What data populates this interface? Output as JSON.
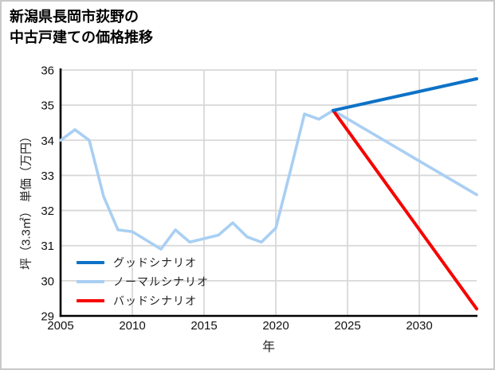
{
  "page": {
    "title_lines": "新潟県長岡市荻野の\n中古戸建ての価格推移"
  },
  "colors": {
    "good_scenario": "#0d72c7",
    "normal_scenario": "#a9cff3",
    "bad_scenario": "#f60000",
    "grid": "#d8d8d8",
    "axis_spine": "#000000",
    "border": "#c9c9c9",
    "background": "#ffffff"
  },
  "chart_data": {
    "type": "line",
    "title": "新潟県長岡市荻野の中古戸建ての価格推移",
    "xlabel": "年",
    "ylabel": "坪（3.3㎡） 単価（万円）",
    "xlim": [
      2005,
      2034
    ],
    "ylim": [
      29,
      36
    ],
    "x_ticks": [
      2005,
      2010,
      2015,
      2020,
      2025,
      2030
    ],
    "y_ticks": [
      29,
      30,
      31,
      32,
      33,
      34,
      35,
      36
    ],
    "grid": true,
    "legend_position": "lower-left-inside",
    "forecast_start_year": 2024,
    "series": [
      {
        "name": "グッドシナリオ",
        "color": "#0d72c7",
        "width": 4,
        "x": [
          2024,
          2034
        ],
        "values": [
          34.85,
          35.75
        ]
      },
      {
        "name": "ノーマルシナリオ",
        "color": "#a9cff3",
        "width": 3.6,
        "x": [
          2005,
          2006,
          2007,
          2008,
          2009,
          2010,
          2011,
          2012,
          2013,
          2014,
          2015,
          2016,
          2017,
          2018,
          2019,
          2020,
          2021,
          2022,
          2023,
          2024,
          2034
        ],
        "values": [
          34.0,
          34.3,
          34.0,
          32.4,
          31.45,
          31.4,
          31.15,
          30.9,
          31.45,
          31.1,
          31.2,
          31.3,
          31.65,
          31.25,
          31.1,
          31.5,
          33.1,
          34.75,
          34.6,
          34.85,
          32.45
        ]
      },
      {
        "name": "バッドシナリオ",
        "color": "#f60000",
        "width": 4,
        "x": [
          2024,
          2034
        ],
        "values": [
          34.85,
          29.2
        ]
      }
    ]
  }
}
